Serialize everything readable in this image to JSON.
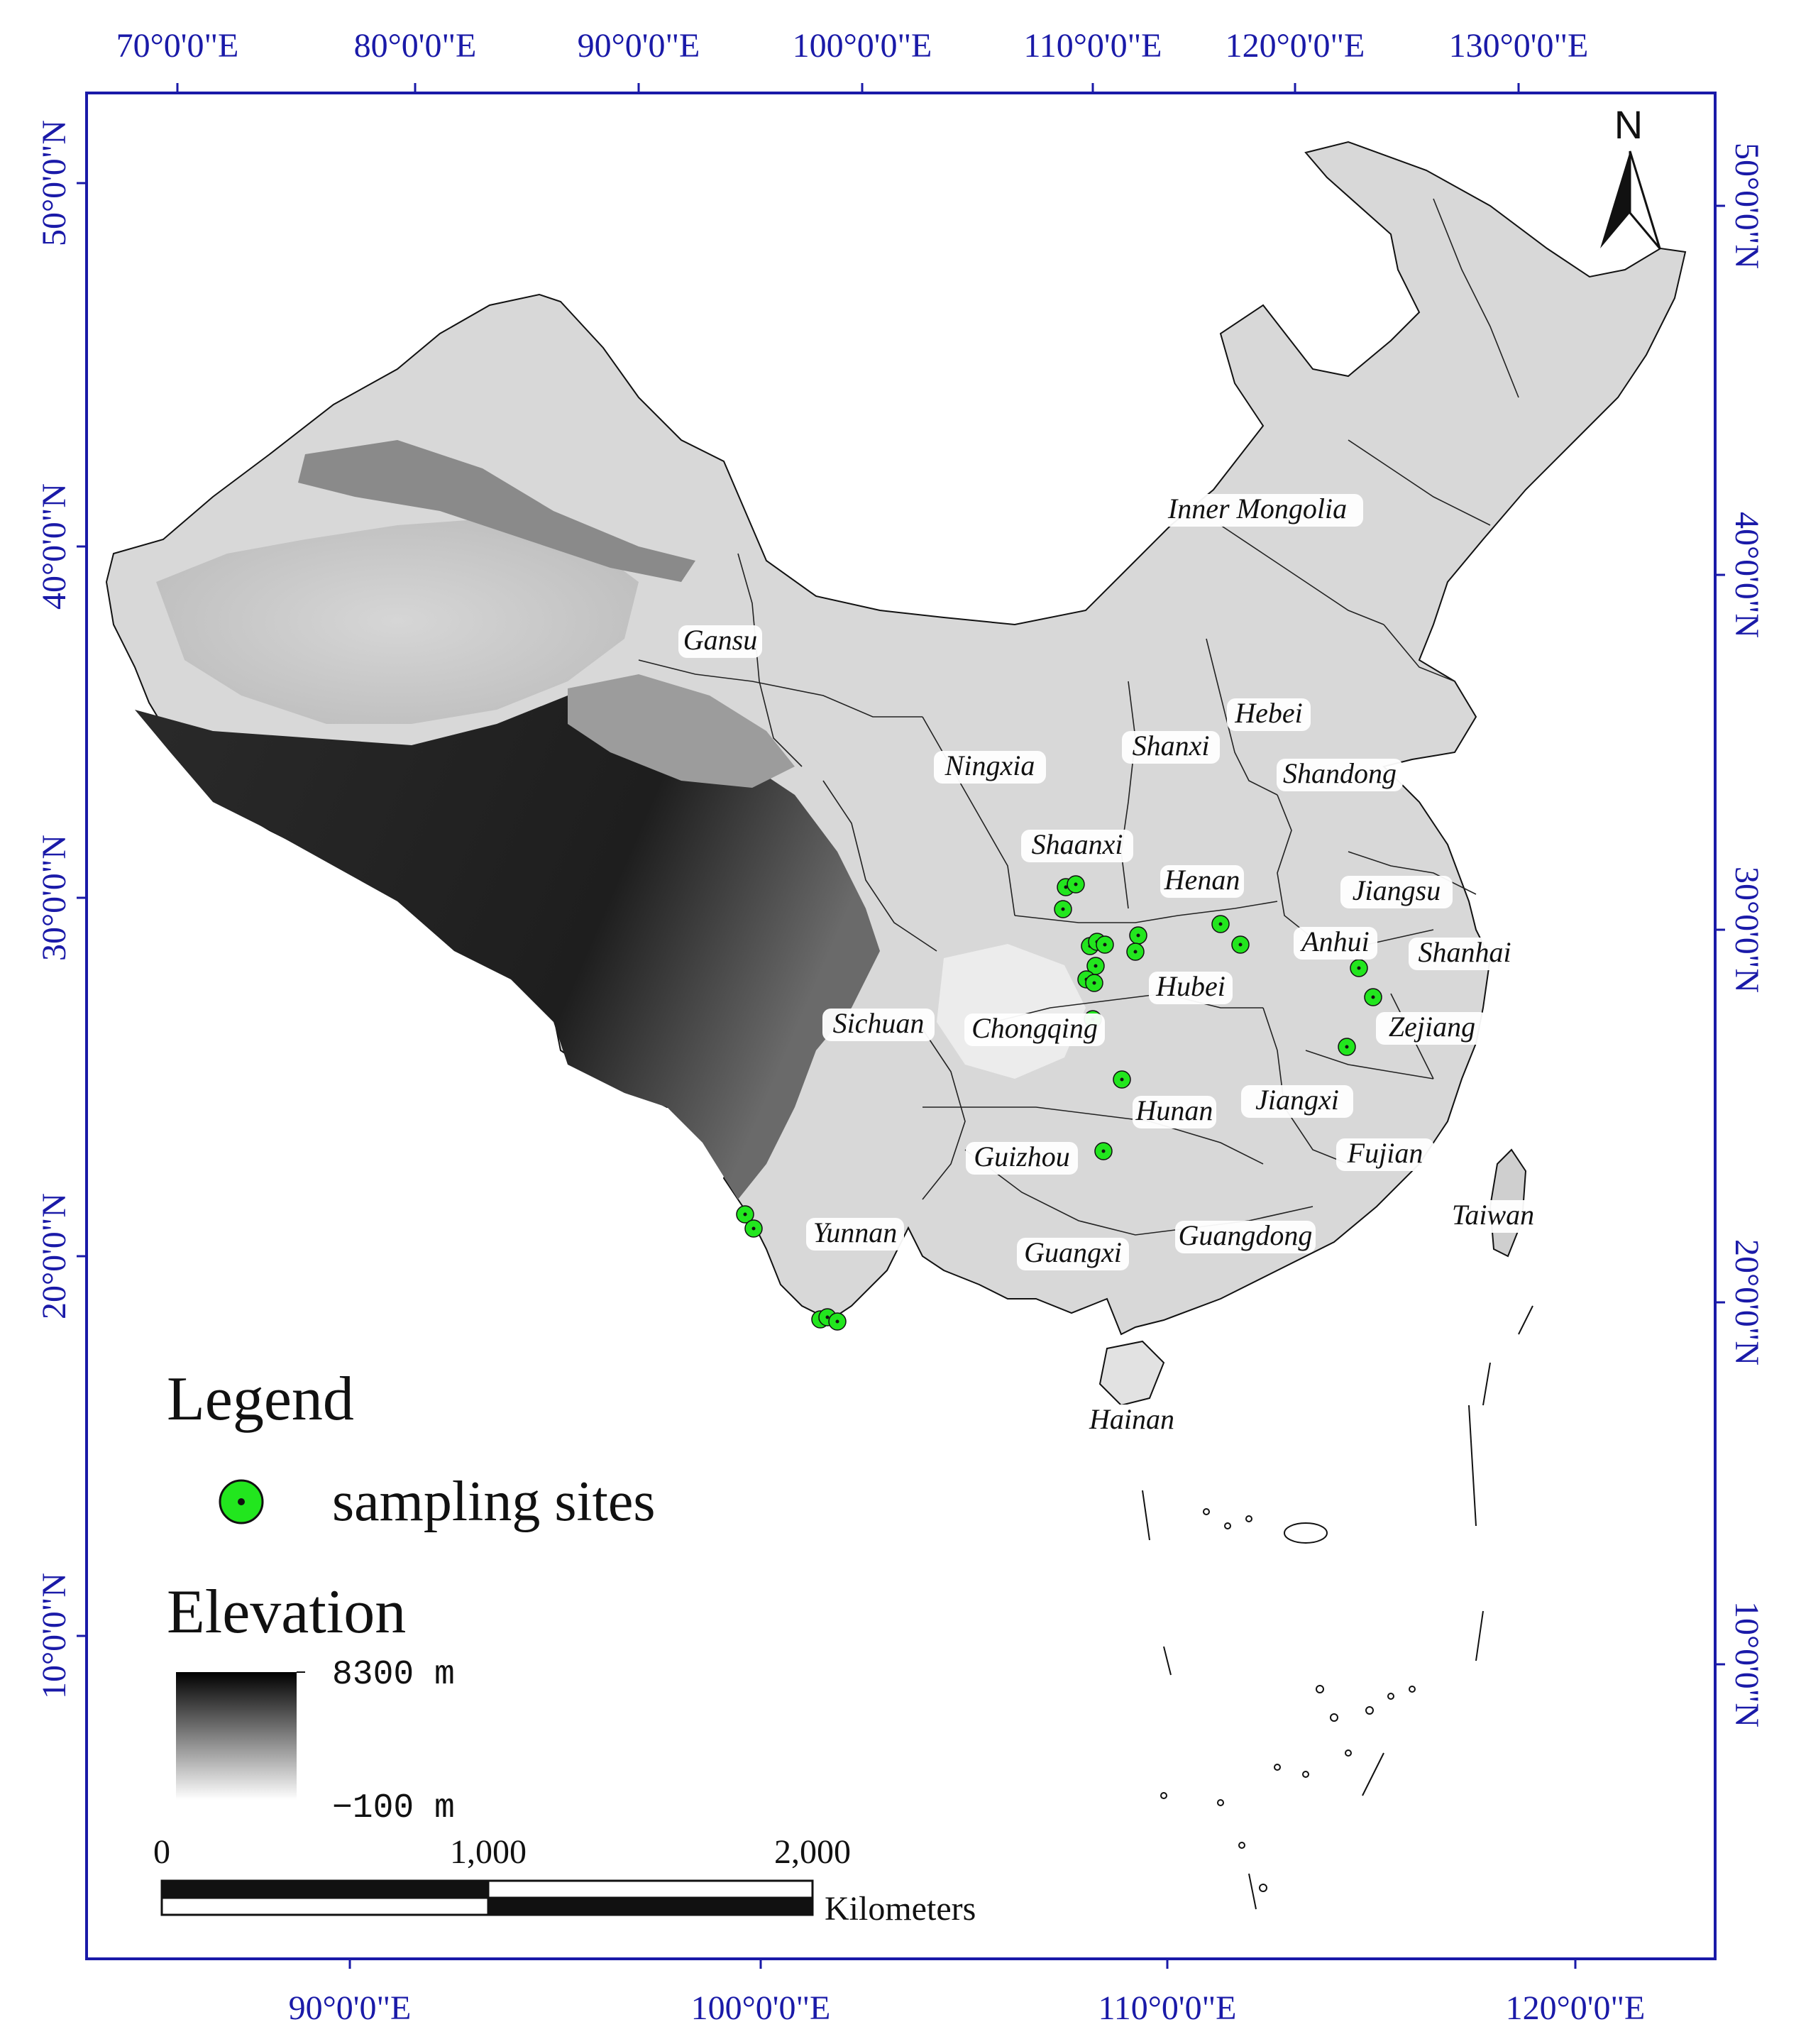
{
  "top_lon_labels": [
    "70°0'0\"E",
    "80°0'0\"E",
    "90°0'0\"E",
    "100°0'0\"E",
    "110°0'0\"E",
    "120°0'0\"E",
    "130°0'0\"E"
  ],
  "bottom_lon_labels": [
    "90°0'0\"E",
    "100°0'0\"E",
    "110°0'0\"E",
    "120°0'0\"E"
  ],
  "left_lat_labels": [
    "50°0'0\"N",
    "40°0'0\"N",
    "30°0'0\"N",
    "20°0'0\"N",
    "10°0'0\"N"
  ],
  "right_lat_labels": [
    "50°0'0\"N",
    "40°0'0\"N",
    "30°0'0\"N",
    "20°0'0\"N",
    "10°0'0\"N"
  ],
  "north_arrow": {
    "label": "N",
    "icon": "north-arrow-icon"
  },
  "provinces": [
    {
      "key": "inner-mongolia",
      "label": "Inner Mongolia"
    },
    {
      "key": "gansu",
      "label": "Gansu"
    },
    {
      "key": "hebei",
      "label": "Hebei"
    },
    {
      "key": "shanxi",
      "label": "Shanxi"
    },
    {
      "key": "ningxia",
      "label": "Ningxia"
    },
    {
      "key": "shandong",
      "label": "Shandong"
    },
    {
      "key": "shaanxi",
      "label": "Shaanxi"
    },
    {
      "key": "henan",
      "label": "Henan"
    },
    {
      "key": "jiangsu",
      "label": "Jiangsu"
    },
    {
      "key": "anhui",
      "label": "Anhui"
    },
    {
      "key": "shanhai",
      "label": "Shanhai"
    },
    {
      "key": "hubei",
      "label": "Hubei"
    },
    {
      "key": "sichuan",
      "label": "Sichuan"
    },
    {
      "key": "chongqing",
      "label": "Chongqing"
    },
    {
      "key": "zejiang",
      "label": "Zejiang"
    },
    {
      "key": "hunan",
      "label": "Hunan"
    },
    {
      "key": "jiangxi",
      "label": "Jiangxi"
    },
    {
      "key": "guizhou",
      "label": "Guizhou"
    },
    {
      "key": "fujian",
      "label": "Fujian"
    },
    {
      "key": "taiwan",
      "label": "Taiwan"
    },
    {
      "key": "yunnan",
      "label": "Yunnan"
    },
    {
      "key": "guangdong",
      "label": "Guangdong"
    },
    {
      "key": "guangxi",
      "label": "Guangxi"
    },
    {
      "key": "hainan",
      "label": "Hainan"
    }
  ],
  "legend": {
    "title": "Legend",
    "sampling_label": "sampling sites",
    "elevation_title": "Elevation",
    "elev_max": "8300 m",
    "elev_min": "−100 m"
  },
  "scale_bar": {
    "ticks": [
      "0",
      "1,000",
      "2,000"
    ],
    "unit": "Kilometers"
  },
  "colors": {
    "frame": "#1a1aa8",
    "site_fill": "#22e61e",
    "land_high": "#0a0a0a",
    "land_low": "#f4f4f4"
  }
}
